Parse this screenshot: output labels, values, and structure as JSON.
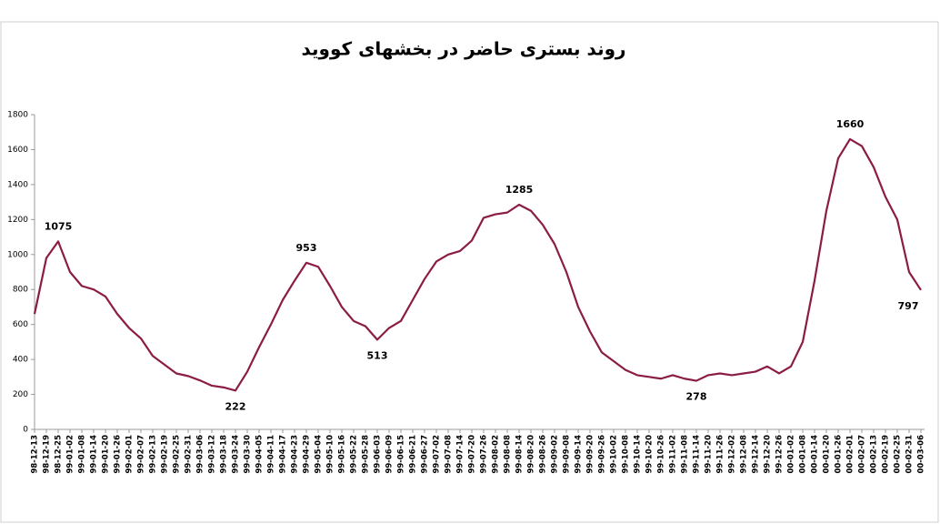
{
  "chart_data": {
    "type": "line",
    "title": "روند بستری حاضر در بخشهای کووید",
    "categories": [
      "98-12-13",
      "98-12-19",
      "98-12-25",
      "99-01-02",
      "99-01-08",
      "99-01-14",
      "99-01-20",
      "99-01-26",
      "99-02-01",
      "99-02-07",
      "99-02-13",
      "99-02-19",
      "99-02-25",
      "99-02-31",
      "99-03-06",
      "99-03-12",
      "99-03-18",
      "99-03-24",
      "99-03-30",
      "99-04-05",
      "99-04-11",
      "99-04-17",
      "99-04-23",
      "99-04-29",
      "99-05-04",
      "99-05-10",
      "99-05-16",
      "99-05-22",
      "99-05-28",
      "99-06-03",
      "99-06-09",
      "99-06-15",
      "99-06-21",
      "99-06-27",
      "99-07-02",
      "99-07-08",
      "99-07-14",
      "99-07-20",
      "99-07-26",
      "99-08-02",
      "99-08-08",
      "99-08-14",
      "99-08-20",
      "99-08-26",
      "99-09-02",
      "99-09-08",
      "99-09-14",
      "99-09-20",
      "99-09-26",
      "99-10-02",
      "99-10-08",
      "99-10-14",
      "99-10-20",
      "99-10-26",
      "99-11-02",
      "99-11-08",
      "99-11-14",
      "99-11-20",
      "99-11-26",
      "99-12-02",
      "99-12-08",
      "99-12-14",
      "99-12-20",
      "99-12-26",
      "00-01-02",
      "00-01-08",
      "00-01-14",
      "00-01-20",
      "00-01-26",
      "00-02-01",
      "00-02-07",
      "00-02-13",
      "00-02-19",
      "00-02-25",
      "00-02-31",
      "00-03-06"
    ],
    "series": [
      {
        "color": "#8b1c45",
        "values": [
          660,
          980,
          1075,
          900,
          820,
          800,
          760,
          660,
          580,
          520,
          420,
          370,
          320,
          305,
          280,
          250,
          240,
          222,
          330,
          470,
          600,
          740,
          850,
          953,
          930,
          820,
          700,
          620,
          590,
          513,
          580,
          620,
          740,
          860,
          960,
          1000,
          1020,
          1080,
          1210,
          1230,
          1240,
          1285,
          1250,
          1170,
          1060,
          900,
          700,
          560,
          440,
          390,
          340,
          310,
          300,
          290,
          310,
          290,
          278,
          310,
          320,
          310,
          320,
          330,
          360,
          320,
          360,
          500,
          850,
          1250,
          1550,
          1660,
          1620,
          1500,
          1330,
          1200,
          900,
          797
        ]
      }
    ],
    "annotations": [
      {
        "category": "98-12-25",
        "value": 1075
      },
      {
        "category": "99-03-24",
        "value": 222
      },
      {
        "category": "99-04-29",
        "value": 953
      },
      {
        "category": "99-06-03",
        "value": 513
      },
      {
        "category": "99-08-14",
        "value": 1285
      },
      {
        "category": "99-11-14",
        "value": 278
      },
      {
        "category": "00-02-01",
        "value": 1660
      },
      {
        "category": "00-03-06",
        "value": 797
      }
    ],
    "ylim": [
      0,
      1800
    ],
    "yticks": [
      0,
      200,
      400,
      600,
      800,
      1000,
      1200,
      1400,
      1600,
      1800
    ],
    "grid": false
  }
}
